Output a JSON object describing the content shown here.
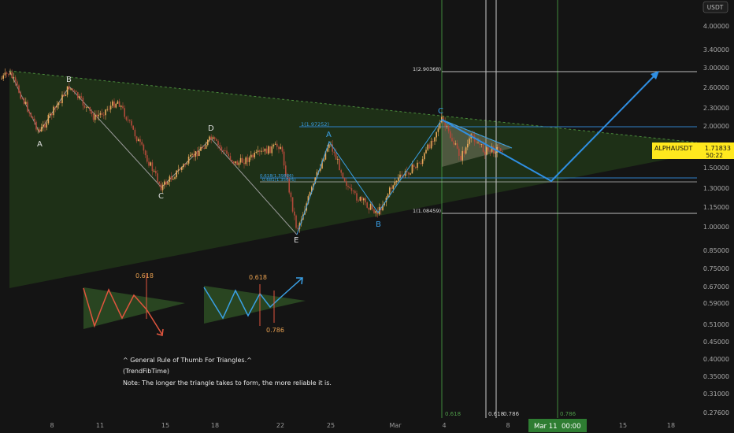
{
  "chart_data": {
    "type": "line",
    "symbol_label": "ALPHAUSDT",
    "last_price": "1.71833",
    "countdown": "50:22",
    "currency_badge": "USDT",
    "y_scale": "log",
    "ylim": [
      0.27,
      4.6
    ],
    "y_ticks": [
      "4.00000",
      "3.40000",
      "3.00000",
      "2.60000",
      "2.30000",
      "2.00000",
      "1.70000",
      "1.50000",
      "1.30000",
      "1.15000",
      "1.00000",
      "0.85000",
      "0.75000",
      "0.67000",
      "0.59000",
      "0.51000",
      "0.45000",
      "0.40000",
      "0.35000",
      "0.31000",
      "0.27600"
    ],
    "x_ticks": [
      "8",
      "11",
      "15",
      "18",
      "22",
      "25",
      "Mar",
      "4",
      "8",
      "15",
      "18"
    ],
    "x_highlight": {
      "date": "Mar 11",
      "time": "00:00"
    },
    "vertical_labels": [
      "0.618",
      "0.618",
      "0.786",
      "0.786"
    ],
    "wave_labels_main": [
      "A",
      "B",
      "C",
      "D",
      "E"
    ],
    "wave_labels_blue": [
      "A",
      "B",
      "C"
    ],
    "fib_levels": [
      {
        "label": "1(2.90368)",
        "value": 2.90368
      },
      {
        "label": "1(1.97252)",
        "value": 1.97252
      },
      {
        "label": "1(1.08459)",
        "value": 1.08459
      },
      {
        "label": "0.618(1.39886)",
        "value": 1.39886
      },
      {
        "label": "0.681(1.35676)",
        "value": 1.35676
      }
    ],
    "diagram_labels": {
      "left": "0.618",
      "right_top": "0.618",
      "right_bottom": "0.786"
    },
    "annotations": [
      "^ General Rule of Thumb For Triangles.^",
      "(TrendFibTime)",
      "Note: The longer the triangle takes to form, the more reliable it is."
    ],
    "colors": {
      "background": "#141414",
      "up_candle": "#e8a85a",
      "down_candle": "#b14a3a",
      "triangle_fill": "#1f3318",
      "projection": "#2f8fe3",
      "price_label": "#ffe81e",
      "fib_green": "#4e9a48",
      "diagram_red": "#e0553e"
    }
  }
}
